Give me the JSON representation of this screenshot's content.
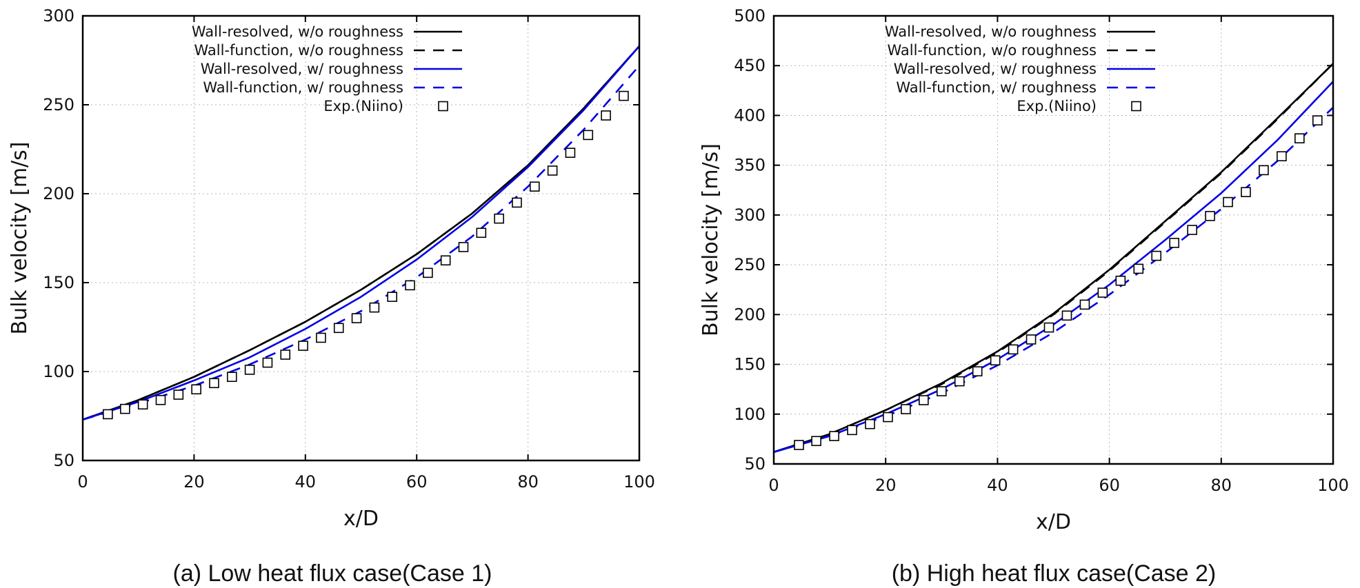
{
  "figure": {
    "series_styles": [
      {
        "name": "Wall-resolved, w/o roughness",
        "color": "#000000",
        "dash": "solid"
      },
      {
        "name": "Wall-function, w/o roughness",
        "color": "#000000",
        "dash": "dashed"
      },
      {
        "name": "Wall-resolved, w/ roughness",
        "color": "#0000e6",
        "dash": "solid"
      },
      {
        "name": "Wall-function, w/ roughness",
        "color": "#0000e6",
        "dash": "dashed"
      },
      {
        "name": "Exp.(Niino)",
        "color": "#000000",
        "marker": "open-square"
      }
    ]
  },
  "chart_data": [
    {
      "type": "line",
      "caption": "(a) Low heat flux case(Case 1)",
      "xlabel": "x/D",
      "ylabel": "Bulk velocity [m/s]",
      "xlim": [
        0,
        100
      ],
      "ylim": [
        50,
        300
      ],
      "xticks": [
        0,
        20,
        40,
        60,
        80,
        100
      ],
      "yticks": [
        50,
        100,
        150,
        200,
        250,
        300
      ],
      "xtick_labels": [
        "0",
        "20",
        "40",
        "60",
        "80",
        "100"
      ],
      "ytick_labels": [
        "50",
        "100",
        "150",
        "200",
        "250",
        "300"
      ],
      "grid": true,
      "legend_position": "top",
      "series": [
        {
          "name": "Wall-resolved, w/o roughness",
          "x": [
            0,
            10,
            20,
            30,
            40,
            50,
            60,
            70,
            80,
            90,
            100
          ],
          "values": [
            73,
            84,
            97,
            112,
            128,
            146,
            166,
            189,
            216,
            248,
            283
          ]
        },
        {
          "name": "Wall-function, w/o roughness",
          "x": [
            0,
            10,
            20,
            30,
            40,
            50,
            60,
            70,
            80,
            90,
            100
          ],
          "values": [
            73,
            84,
            97,
            112,
            128,
            146,
            166,
            189,
            216,
            248,
            283
          ]
        },
        {
          "name": "Wall-resolved, w/ roughness",
          "x": [
            0,
            10,
            20,
            30,
            40,
            50,
            60,
            70,
            80,
            90,
            100
          ],
          "values": [
            73,
            83,
            95,
            108,
            124,
            142,
            163,
            187,
            215,
            247,
            283
          ]
        },
        {
          "name": "Wall-function, w/ roughness",
          "x": [
            0,
            10,
            20,
            30,
            40,
            50,
            60,
            70,
            80,
            90,
            100
          ],
          "values": [
            73,
            82,
            92,
            104,
            118,
            134,
            153,
            176,
            204,
            236,
            272
          ]
        },
        {
          "name": "Exp.(Niino)",
          "x": [
            4.5,
            7.6,
            10.8,
            14,
            17.2,
            20.4,
            23.6,
            26.8,
            30,
            33.2,
            36.4,
            39.6,
            42.8,
            46,
            49.2,
            52.4,
            55.6,
            58.8,
            62,
            65.2,
            68.4,
            71.6,
            74.8,
            78,
            81.2,
            84.4,
            87.6,
            90.8,
            94,
            97.2
          ],
          "values": [
            76,
            79,
            81.5,
            84,
            87,
            90,
            93.5,
            97,
            101,
            105,
            109.5,
            114.5,
            119,
            124.5,
            130,
            136,
            142,
            148.5,
            155.5,
            162.5,
            170,
            178,
            186,
            195,
            204,
            213,
            223,
            233,
            244,
            255
          ]
        }
      ]
    },
    {
      "type": "line",
      "caption": "(b) High heat flux case(Case 2)",
      "xlabel": "x/D",
      "ylabel": "Bulk velocity [m/s]",
      "xlim": [
        0,
        100
      ],
      "ylim": [
        50,
        500
      ],
      "xticks": [
        0,
        20,
        40,
        60,
        80,
        100
      ],
      "yticks": [
        50,
        100,
        150,
        200,
        250,
        300,
        350,
        400,
        450,
        500
      ],
      "xtick_labels": [
        "0",
        "20",
        "40",
        "60",
        "80",
        "100"
      ],
      "ytick_labels": [
        "50",
        "100",
        "150",
        "200",
        "250",
        "300",
        "350",
        "400",
        "450",
        "500"
      ],
      "grid": true,
      "legend_position": "top",
      "series": [
        {
          "name": "Wall-resolved, w/o roughness",
          "x": [
            0,
            10,
            20,
            30,
            40,
            50,
            60,
            70,
            80,
            90,
            100
          ],
          "values": [
            62,
            80,
            104,
            131,
            163,
            201,
            245,
            294,
            343,
            397,
            452
          ]
        },
        {
          "name": "Wall-function, w/o roughness",
          "x": [
            0,
            10,
            20,
            30,
            40,
            50,
            60,
            70,
            80,
            90,
            100
          ],
          "values": [
            62,
            80,
            104,
            130,
            162,
            200,
            244,
            293,
            342,
            396,
            452
          ]
        },
        {
          "name": "Wall-resolved, w/ roughness",
          "x": [
            0,
            10,
            20,
            30,
            40,
            50,
            60,
            70,
            80,
            90,
            100
          ],
          "values": [
            62,
            78,
            100,
            125,
            155,
            190,
            230,
            275,
            322,
            375,
            434
          ]
        },
        {
          "name": "Wall-function, w/ roughness",
          "x": [
            0,
            10,
            20,
            30,
            40,
            50,
            60,
            70,
            80,
            90,
            100
          ],
          "values": [
            62,
            78,
            98,
            121,
            149,
            182,
            220,
            262,
            306,
            354,
            408
          ]
        },
        {
          "name": "Exp.(Niino)",
          "x": [
            4.5,
            7.6,
            10.8,
            14,
            17.2,
            20.4,
            23.6,
            26.8,
            30,
            33.2,
            36.4,
            39.6,
            42.8,
            46,
            49.2,
            52.4,
            55.6,
            58.8,
            62,
            65.2,
            68.4,
            71.6,
            74.8,
            78,
            81.2,
            84.4,
            87.6,
            90.8,
            94,
            97.2
          ],
          "values": [
            69,
            73,
            78,
            84,
            90,
            97,
            105,
            114,
            123,
            133,
            143,
            154,
            165,
            175,
            187,
            199,
            210,
            222,
            234,
            246,
            259,
            272,
            285,
            299,
            313,
            323,
            345,
            359,
            377,
            395
          ]
        }
      ]
    }
  ]
}
